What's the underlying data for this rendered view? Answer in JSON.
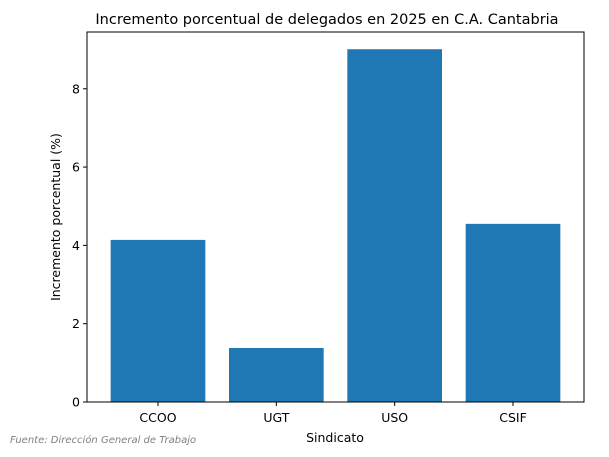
{
  "chart_data": {
    "type": "bar",
    "title": "Incremento porcentual de delegados en 2025 en C.A. Cantabria",
    "xlabel": "Sindicato",
    "ylabel": "Incremento porcentual (%)",
    "categories": [
      "CCOO",
      "UGT",
      "USO",
      "CSIF"
    ],
    "values": [
      4.14,
      1.38,
      9.01,
      4.55
    ],
    "ylim": [
      0,
      9.45
    ],
    "yticks": [
      0,
      2,
      4,
      6,
      8
    ],
    "grid": false,
    "bar_color": "#1f77b4"
  },
  "source_note": "Fuente: Dirección General de Trabajo"
}
